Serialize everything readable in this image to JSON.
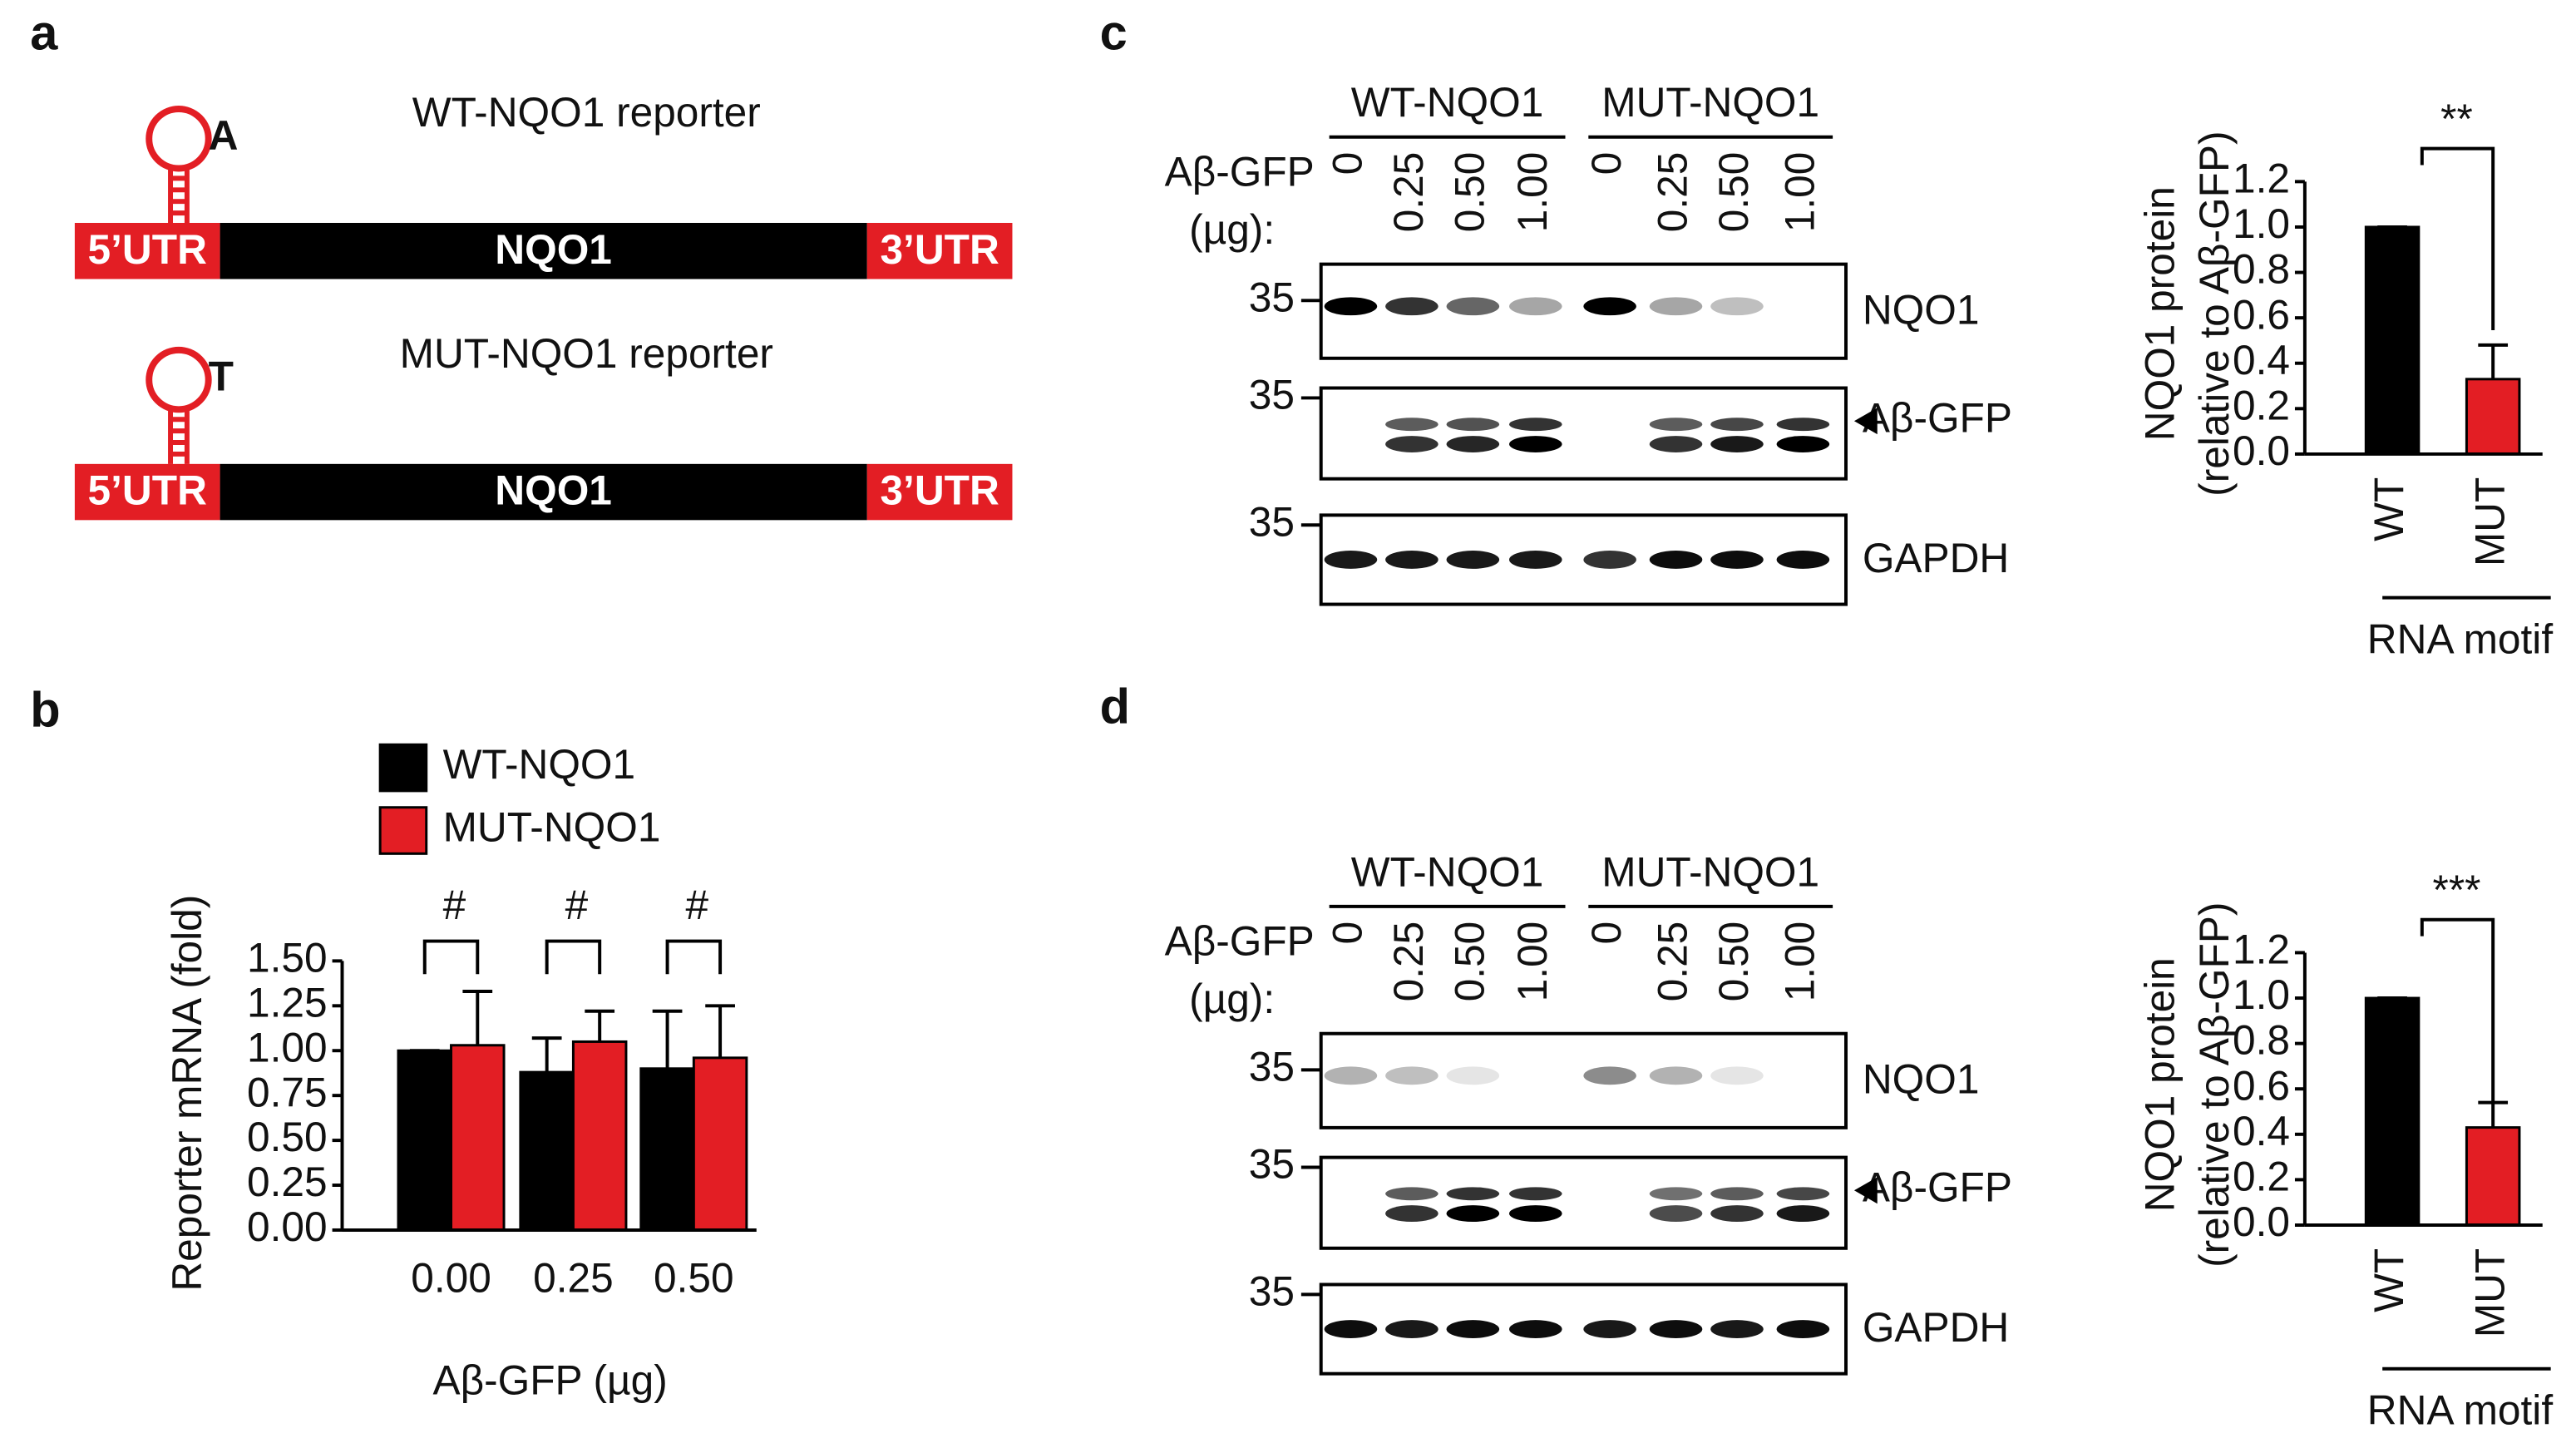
{
  "panel_labels": [
    "a",
    "b",
    "c",
    "d"
  ],
  "constructs": [
    {
      "title": "WT-NQO1 reporter",
      "nucleotide": "A",
      "utr5": "5’UTR",
      "gene": "NQO1",
      "utr3": "3’UTR"
    },
    {
      "title": "MUT-NQO1 reporter",
      "nucleotide": "T",
      "utr5": "5’UTR",
      "gene": "NQO1",
      "utr3": "3’UTR"
    }
  ],
  "blots": [
    {
      "groups": [
        "WT-NQO1",
        "MUT-NQO1"
      ],
      "dose_label": "Aβ-GFP",
      "dose_unit": "(µg):",
      "doses": [
        "0",
        "0.25",
        "0.50",
        "1.00",
        "0",
        "0.25",
        "0.50",
        "1.00"
      ],
      "rows": [
        {
          "marker": "35",
          "name": "NQO1"
        },
        {
          "marker": "35",
          "name": "Aβ-GFP"
        },
        {
          "marker": "35",
          "name": "GAPDH"
        }
      ]
    },
    {
      "groups": [
        "WT-NQO1",
        "MUT-NQO1"
      ],
      "dose_label": "Aβ-GFP",
      "dose_unit": "(µg):",
      "doses": [
        "0",
        "0.25",
        "0.50",
        "1.00",
        "0",
        "0.25",
        "0.50",
        "1.00"
      ],
      "rows": [
        {
          "marker": "35",
          "name": "NQO1"
        },
        {
          "marker": "35",
          "name": "Aβ-GFP"
        },
        {
          "marker": "35",
          "name": "GAPDH"
        }
      ]
    }
  ],
  "chart_data": [
    {
      "type": "grouped-bar",
      "ylabel": "Reporter mRNA (fold)",
      "xlabel": "Aβ-GFP (µg)",
      "categories": [
        "0.00",
        "0.25",
        "0.50"
      ],
      "series": [
        {
          "name": "WT-NQO1",
          "color": "#000000",
          "values": [
            1.0,
            0.88,
            0.9
          ],
          "errors": [
            0.0,
            0.19,
            0.32
          ]
        },
        {
          "name": "MUT-NQO1",
          "color": "#e31e24",
          "values": [
            1.03,
            1.05,
            0.96
          ],
          "errors": [
            0.3,
            0.17,
            0.29
          ]
        }
      ],
      "annotations": [
        "#",
        "#",
        "#"
      ],
      "ylim": [
        0,
        1.5
      ],
      "yticks": [
        {
          "value": 0,
          "label": "0.00"
        },
        0.25,
        {
          "value": 0.5,
          "label": "0.50"
        },
        0.75,
        {
          "value": 1,
          "label": "1.00"
        },
        1.25,
        {
          "value": 1.5,
          "label": "1.50"
        }
      ]
    },
    {
      "type": "bar",
      "ylabel": "NQO1 protein",
      "ylabel2": "(relative to Aβ-GFP)",
      "categories": [
        "WT",
        "MUT"
      ],
      "values": [
        1.0,
        0.33
      ],
      "errors": [
        0.0,
        0.15
      ],
      "colors": [
        "#000000",
        "#e31e24"
      ],
      "group_label": "RNA motif",
      "significance": "**",
      "ylim": [
        0,
        1.2
      ],
      "yticks": [
        {
          "value": 0,
          "label": "0.0"
        },
        0.2,
        0.4,
        0.6,
        0.8,
        {
          "value": 1,
          "label": "1.0"
        },
        1.2
      ]
    },
    {
      "type": "bar",
      "ylabel": "NQO1 protein",
      "ylabel2": "(relative to Aβ-GFP)",
      "categories": [
        "WT",
        "MUT"
      ],
      "values": [
        1.0,
        0.43
      ],
      "errors": [
        0.0,
        0.11
      ],
      "colors": [
        "#000000",
        "#e31e24"
      ],
      "group_label": "RNA motif",
      "significance": "***",
      "ylim": [
        0,
        1.2
      ],
      "yticks": [
        {
          "value": 0,
          "label": "0.0"
        },
        0.2,
        0.4,
        0.6,
        0.8,
        {
          "value": 1,
          "label": "1.0"
        },
        1.2
      ]
    }
  ]
}
